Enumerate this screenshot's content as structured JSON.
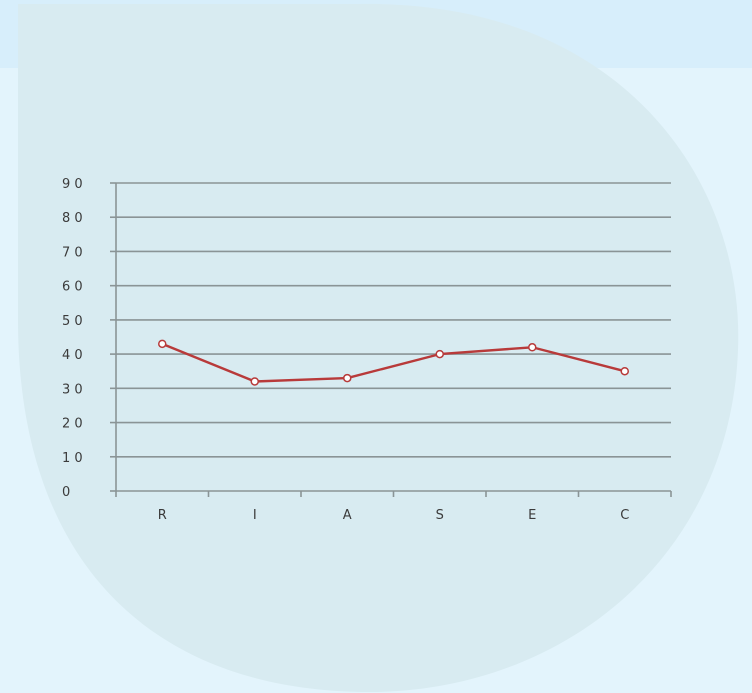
{
  "chart_data": {
    "type": "line",
    "categories": [
      "R",
      "I",
      "A",
      "S",
      "E",
      "C"
    ],
    "series": [
      {
        "values": [
          43,
          32,
          33,
          40,
          42,
          35
        ]
      }
    ],
    "ylim": [
      0,
      90
    ],
    "yticks": [
      0,
      10,
      20,
      30,
      40,
      50,
      60,
      70,
      80,
      90
    ],
    "ytick_labels": [
      "0",
      "1 0",
      "2 0",
      "3 0",
      "4 0",
      "5 0",
      "6 0",
      "7 0",
      "8 0",
      "9 0"
    ],
    "grid": true,
    "title": "",
    "xlabel": "",
    "ylabel": ""
  },
  "colors": {
    "background": "#e3f4fc",
    "header_band": "#d7eefb",
    "bubble": "#d8ebf1",
    "gridline": "#8a9496",
    "series_line": "#b83a3a",
    "marker_fill": "#ffffff"
  }
}
